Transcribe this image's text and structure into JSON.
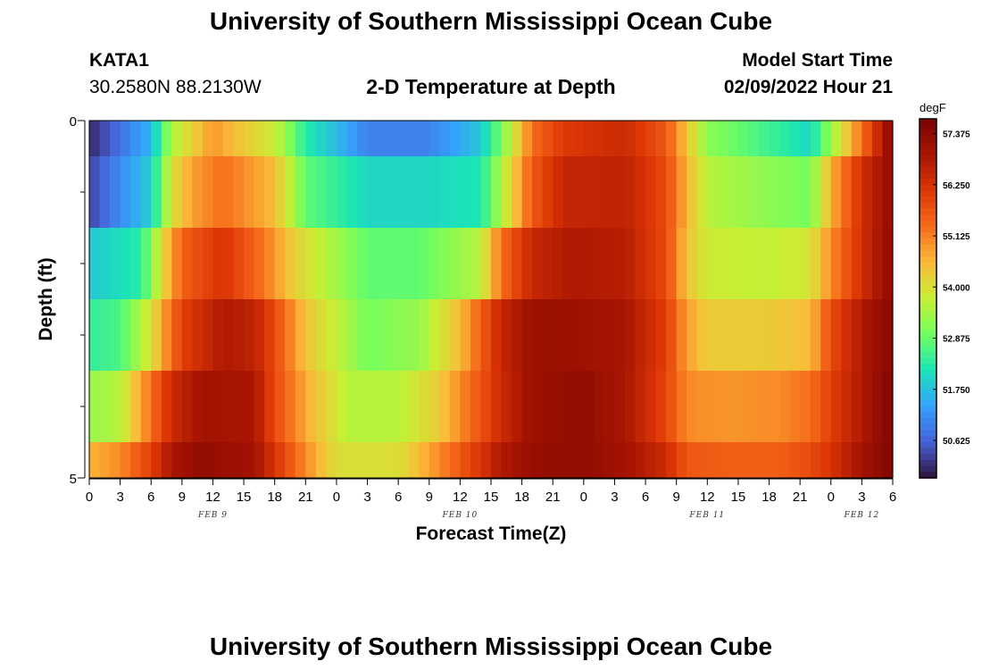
{
  "page": {
    "title": "University of Southern Mississippi Ocean Cube",
    "footer_title": "University of Southern Mississippi Ocean Cube",
    "station_id": "KATA1",
    "coords": "30.2580N  88.2130W",
    "center_title": "2-D Temperature at Depth",
    "model_start_label": "Model Start Time",
    "model_start_value": "02/09/2022 Hour 21"
  },
  "chart_data": {
    "type": "heatmap",
    "title": "2-D Temperature at Depth",
    "xlabel": "Forecast Time(Z)",
    "ylabel": "Depth (ft)",
    "x_tick_labels": [
      "0",
      "3",
      "6",
      "9",
      "12",
      "15",
      "18",
      "21",
      "0",
      "3",
      "6",
      "9",
      "12",
      "15",
      "18",
      "21",
      "0",
      "3",
      "6",
      "9",
      "12",
      "15",
      "18",
      "21",
      "0",
      "3",
      "6"
    ],
    "date_labels": [
      {
        "label": "FEB 9",
        "hour": 12
      },
      {
        "label": "FEB 10",
        "hour": 36
      },
      {
        "label": "FEB 11",
        "hour": 60
      },
      {
        "label": "FEB 12",
        "hour": 75
      }
    ],
    "xlim": [
      0,
      78
    ],
    "ylim": [
      0,
      5
    ],
    "y_tick_labels": [
      "0",
      "5"
    ],
    "y_ticks": [
      0,
      1,
      2,
      3,
      4,
      5
    ],
    "colorbar": {
      "unit": "degF",
      "min": 49.8,
      "max": 57.7,
      "ticks": [
        "57.375",
        "56.250",
        "55.125",
        "54.000",
        "52.875",
        "51.750",
        "50.625"
      ],
      "tick_values": [
        57.375,
        56.25,
        55.125,
        54.0,
        52.875,
        51.75,
        50.625
      ]
    },
    "depth_rows": [
      {
        "depth_top": 0,
        "depth_bottom": 0.5,
        "keys": [
          [
            0,
            50.0
          ],
          [
            6,
            51.6
          ],
          [
            8,
            53.5
          ],
          [
            10,
            54.2
          ],
          [
            12,
            54.9
          ],
          [
            15,
            54.3
          ],
          [
            18,
            53.8
          ],
          [
            21,
            52.3
          ],
          [
            27,
            51.0
          ],
          [
            33,
            51.0
          ],
          [
            38,
            51.8
          ],
          [
            40,
            53.0
          ],
          [
            43,
            55.3
          ],
          [
            46,
            56.1
          ],
          [
            52,
            56.4
          ],
          [
            56,
            55.6
          ],
          [
            58,
            54.4
          ],
          [
            60,
            53.2
          ],
          [
            66,
            52.5
          ],
          [
            70,
            52.0
          ],
          [
            72,
            53.3
          ],
          [
            75,
            55.3
          ],
          [
            78,
            57.5
          ]
        ]
      },
      {
        "depth_top": 0.5,
        "depth_bottom": 1.5,
        "keys": [
          [
            0,
            50.3
          ],
          [
            6,
            51.9
          ],
          [
            8,
            54.0
          ],
          [
            10,
            54.8
          ],
          [
            13,
            55.3
          ],
          [
            18,
            54.5
          ],
          [
            21,
            52.8
          ],
          [
            27,
            52.0
          ],
          [
            33,
            52.0
          ],
          [
            38,
            52.2
          ],
          [
            40,
            53.5
          ],
          [
            43,
            55.6
          ],
          [
            46,
            56.5
          ],
          [
            52,
            56.6
          ],
          [
            56,
            55.8
          ],
          [
            58,
            54.6
          ],
          [
            60,
            53.6
          ],
          [
            66,
            53.2
          ],
          [
            70,
            53.0
          ],
          [
            72,
            54.6
          ],
          [
            75,
            56.3
          ],
          [
            78,
            57.3
          ]
        ]
      },
      {
        "depth_top": 1.5,
        "depth_bottom": 2.5,
        "keys": [
          [
            0,
            51.8
          ],
          [
            5,
            52.3
          ],
          [
            7,
            54.0
          ],
          [
            9,
            55.5
          ],
          [
            13,
            56.2
          ],
          [
            17,
            55.2
          ],
          [
            20,
            54.2
          ],
          [
            27,
            52.8
          ],
          [
            32,
            52.8
          ],
          [
            38,
            53.6
          ],
          [
            40,
            55.3
          ],
          [
            43,
            56.5
          ],
          [
            47,
            56.8
          ],
          [
            52,
            56.7
          ],
          [
            56,
            55.8
          ],
          [
            58,
            54.4
          ],
          [
            60,
            53.8
          ],
          [
            66,
            53.7
          ],
          [
            70,
            53.9
          ],
          [
            72,
            55.0
          ],
          [
            75,
            56.3
          ],
          [
            78,
            57.4
          ]
        ]
      },
      {
        "depth_top": 2.5,
        "depth_bottom": 3.5,
        "keys": [
          [
            0,
            52.4
          ],
          [
            3,
            52.6
          ],
          [
            6,
            54.0
          ],
          [
            9,
            56.0
          ],
          [
            13,
            56.8
          ],
          [
            16,
            56.6
          ],
          [
            18,
            55.8
          ],
          [
            21,
            54.4
          ],
          [
            27,
            53.0
          ],
          [
            32,
            53.3
          ],
          [
            36,
            54.5
          ],
          [
            40,
            56.5
          ],
          [
            43,
            57.1
          ],
          [
            47,
            57.1
          ],
          [
            52,
            56.9
          ],
          [
            56,
            56.0
          ],
          [
            58,
            54.8
          ],
          [
            60,
            54.3
          ],
          [
            66,
            54.3
          ],
          [
            70,
            54.5
          ],
          [
            72,
            55.8
          ],
          [
            75,
            56.8
          ],
          [
            78,
            57.5
          ]
        ]
      },
      {
        "depth_top": 3.5,
        "depth_bottom": 4.5,
        "keys": [
          [
            0,
            53.3
          ],
          [
            3,
            53.6
          ],
          [
            6,
            55.3
          ],
          [
            8,
            56.4
          ],
          [
            11,
            57.0
          ],
          [
            16,
            56.9
          ],
          [
            18,
            55.8
          ],
          [
            21,
            54.7
          ],
          [
            25,
            53.6
          ],
          [
            30,
            53.6
          ],
          [
            34,
            54.3
          ],
          [
            40,
            56.4
          ],
          [
            43,
            57.1
          ],
          [
            48,
            57.3
          ],
          [
            52,
            56.9
          ],
          [
            56,
            55.9
          ],
          [
            58,
            55.0
          ],
          [
            62,
            54.9
          ],
          [
            67,
            55.0
          ],
          [
            70,
            55.3
          ],
          [
            72,
            56.0
          ],
          [
            75,
            56.8
          ],
          [
            78,
            57.6
          ]
        ]
      },
      {
        "depth_top": 4.5,
        "depth_bottom": 5.0,
        "keys": [
          [
            0,
            54.6
          ],
          [
            3,
            55.0
          ],
          [
            6,
            56.0
          ],
          [
            8,
            56.9
          ],
          [
            11,
            57.3
          ],
          [
            16,
            57.0
          ],
          [
            18,
            56.2
          ],
          [
            21,
            55.0
          ],
          [
            24,
            54.0
          ],
          [
            30,
            54.0
          ],
          [
            34,
            55.0
          ],
          [
            40,
            56.8
          ],
          [
            43,
            57.2
          ],
          [
            48,
            57.3
          ],
          [
            52,
            57.0
          ],
          [
            56,
            56.4
          ],
          [
            58,
            55.6
          ],
          [
            62,
            55.5
          ],
          [
            67,
            55.5
          ],
          [
            70,
            55.8
          ],
          [
            72,
            56.2
          ],
          [
            75,
            57.0
          ],
          [
            78,
            57.6
          ]
        ]
      }
    ]
  }
}
